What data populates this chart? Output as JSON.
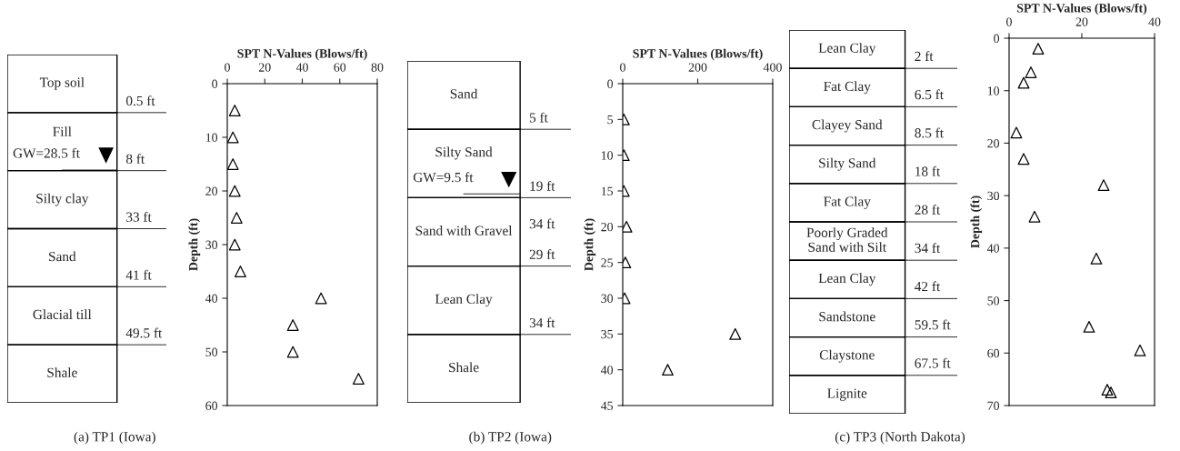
{
  "chart_data": [
    {
      "type": "other",
      "categories": [
        "Top soil",
        "Fill",
        "Silty clay",
        "Sand",
        "Glacial till",
        "Shale"
      ],
      "annotations": [
        "0.5 ft",
        "8 ft",
        "33 ft",
        "41 ft",
        "49.5 ft",
        "GW=28.5 ft"
      ]
    },
    {
      "type": "scatter",
      "xlabel": "SPT N-Values (Blows/ft)",
      "ylabel": "Depth (ft)",
      "marker": "triangle",
      "xlim": [
        0,
        80
      ],
      "xticks": [
        0,
        20,
        40,
        60,
        80
      ],
      "ylim": [
        60,
        0
      ],
      "yticks": [
        0,
        10,
        20,
        30,
        40,
        50,
        60
      ],
      "grid": false,
      "annotations": [
        "(a) TP1 (Iowa)"
      ],
      "series": [
        {
          "color": "#000000",
          "x": [
            4,
            3,
            3,
            4,
            5,
            4,
            7,
            50,
            35,
            35,
            70
          ],
          "values": [
            5,
            10,
            15,
            20,
            25,
            30,
            35,
            40,
            45,
            50,
            55
          ]
        }
      ]
    },
    {
      "type": "other",
      "categories": [
        "Sand",
        "Silty Sand",
        "Sand with Gravel",
        "Lean Clay",
        "Shale"
      ],
      "annotations": [
        "5 ft",
        "19 ft",
        "29 ft",
        "34 ft",
        "GW=9.5 ft",
        "34 ft"
      ]
    },
    {
      "type": "scatter",
      "xlabel": "SPT N-Values (Blows/ft)",
      "ylabel": "Depth (ft)",
      "marker": "triangle",
      "xlim": [
        0,
        400
      ],
      "xticks": [
        0,
        200,
        400
      ],
      "ylim": [
        45,
        0
      ],
      "yticks": [
        0,
        5,
        10,
        15,
        20,
        25,
        30,
        35,
        40,
        45
      ],
      "grid": false,
      "annotations": [
        "(b) TP2 (Iowa)"
      ],
      "series": [
        {
          "color": "#000000",
          "x": [
            3,
            3,
            3,
            10,
            7,
            5,
            300,
            120
          ],
          "values": [
            5,
            10,
            15,
            20,
            25,
            30,
            35,
            40
          ]
        }
      ]
    },
    {
      "type": "other",
      "categories": [
        "Lean Clay",
        "Fat Clay",
        "Clayey Sand",
        "Silty Sand",
        "Fat Clay",
        "Poorly Graded\nSand with Silt",
        "Lean Clay",
        "Sandstone",
        "Claystone",
        "Lignite"
      ],
      "annotations": [
        "2 ft",
        "6.5 ft",
        "8.5 ft",
        "18 ft",
        "28 ft",
        "34 ft",
        "42 ft",
        "59.5 ft",
        "67.5 ft"
      ]
    },
    {
      "type": "scatter",
      "xlabel": "SPT N-Values (Blows/ft)",
      "ylabel": "Depth (ft)",
      "marker": "triangle",
      "xlim": [
        0,
        40
      ],
      "xticks": [
        0,
        20,
        40
      ],
      "ylim": [
        70,
        0
      ],
      "yticks": [
        0,
        10,
        20,
        30,
        40,
        50,
        60,
        70
      ],
      "grid": false,
      "annotations": [
        "(c) TP3 (North Dakota)"
      ],
      "series": [
        {
          "color": "#000000",
          "x": [
            8,
            6,
            4,
            2,
            4,
            26,
            7,
            24,
            22,
            36,
            27,
            28
          ],
          "values": [
            2,
            6.5,
            8.5,
            18,
            23,
            28,
            34,
            42,
            55,
            59.5,
            67,
            67.5
          ]
        }
      ]
    }
  ]
}
